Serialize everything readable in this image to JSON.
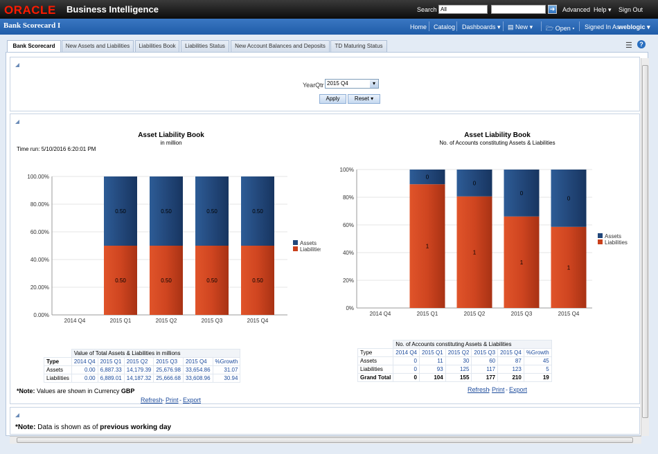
{
  "header": {
    "brand": "ORACLE",
    "product": "Business Intelligence",
    "search_label": "Search",
    "search_scope": "All",
    "advanced": "Advanced",
    "help": "Help",
    "sign_out": "Sign Out"
  },
  "titlebar": {
    "page_title": "Bank Scorecard I",
    "home": "Home",
    "catalog": "Catalog",
    "dashboards": "Dashboards",
    "new": "New",
    "open": "Open",
    "signed_in_as": "Signed In As",
    "user": "weblogic"
  },
  "tabs": [
    "Bank Scorecard",
    "New Assets and Liabilities",
    "Liabilities Book",
    "Liabilities Status",
    "New Account Balances and Deposits",
    "TD Maturing Status"
  ],
  "prompt": {
    "label": "YearQtr",
    "value": "2015 Q4",
    "apply": "Apply",
    "reset": "Reset"
  },
  "left_report": {
    "title": "Asset Liability Book",
    "subtitle": "in million",
    "time_run": "Time run: 5/10/2016 6:20:01 PM",
    "table_caption": "Value of Total Assets & Liabilities in millions",
    "columns": [
      "Type",
      "2014 Q4",
      "2015 Q1",
      "2015 Q2",
      "2015 Q3",
      "2015 Q4",
      "%Growth"
    ],
    "rows": [
      [
        "Assets",
        "0.00",
        "6,887.33",
        "14,179.39",
        "25,676.98",
        "33,654.86",
        "31.07"
      ],
      [
        "Liabilities",
        "0.00",
        "6,889.01",
        "14,187.32",
        "25,666.68",
        "33,608.96",
        "30.94"
      ]
    ],
    "note_prefix": "*Note:",
    "note_text": " Values are shown in Currency ",
    "note_currency": "GBP",
    "refresh": "Refresh",
    "print": "Print",
    "export": "Export"
  },
  "right_report": {
    "title": "Asset Liability Book",
    "subtitle": "No. of Accounts constituting Assets & Liabilities",
    "table_caption": "No. of Accounts constituting Assets & Liabilities",
    "columns": [
      "Type",
      "2014 Q4",
      "2015 Q1",
      "2015 Q2",
      "2015 Q3",
      "2015 Q4",
      "%Growth"
    ],
    "rows": [
      [
        "Assets",
        "0",
        "11",
        "30",
        "60",
        "87",
        "45"
      ],
      [
        "Liabilities",
        "0",
        "93",
        "125",
        "117",
        "123",
        "5"
      ]
    ],
    "total": [
      "Grand Total",
      "0",
      "104",
      "155",
      "177",
      "210",
      "19"
    ],
    "refresh": "Refresh",
    "print": "Print",
    "export": "Export"
  },
  "footer_note": {
    "prefix": "*Note:",
    "text": " Data is shown as of ",
    "emph": "previous working day"
  },
  "chart_data": [
    {
      "type": "bar",
      "stacked": "percent",
      "title": "Asset Liability Book",
      "subtitle": "in million",
      "categories": [
        "2014 Q4",
        "2015 Q1",
        "2015 Q2",
        "2015 Q3",
        "2015 Q4"
      ],
      "yticks": [
        "0.00%",
        "20.00%",
        "40.00%",
        "60.00%",
        "80.00%",
        "100.00%"
      ],
      "ylim": [
        0,
        100
      ],
      "legend": "right",
      "series": [
        {
          "name": "Liabilities",
          "color": "#c9401b",
          "share": [
            0,
            50,
            50,
            50,
            50
          ],
          "labels": [
            "",
            "0.50",
            "0.50",
            "0.50",
            "0.50"
          ]
        },
        {
          "name": "Assets",
          "color": "#22477a",
          "share": [
            0,
            50,
            50,
            50,
            50
          ],
          "labels": [
            "",
            "0.50",
            "0.50",
            "0.50",
            "0.50"
          ]
        }
      ]
    },
    {
      "type": "bar",
      "stacked": "percent",
      "title": "Asset Liability Book",
      "subtitle": "No. of Accounts constituting Assets & Liabilities",
      "categories": [
        "2014 Q4",
        "2015 Q1",
        "2015 Q2",
        "2015 Q3",
        "2015 Q4"
      ],
      "yticks": [
        "0%",
        "20%",
        "40%",
        "60%",
        "80%",
        "100%"
      ],
      "ylim": [
        0,
        100
      ],
      "legend": "right",
      "series": [
        {
          "name": "Liabilities",
          "color": "#c9401b",
          "share": [
            0,
            89.4,
            80.6,
            66.1,
            58.6
          ],
          "labels": [
            "",
            "1",
            "1",
            "1",
            "1"
          ]
        },
        {
          "name": "Assets",
          "color": "#22477a",
          "share": [
            0,
            10.6,
            19.4,
            33.9,
            41.4
          ],
          "labels": [
            "",
            "0",
            "0",
            "0",
            "0"
          ]
        }
      ]
    }
  ]
}
